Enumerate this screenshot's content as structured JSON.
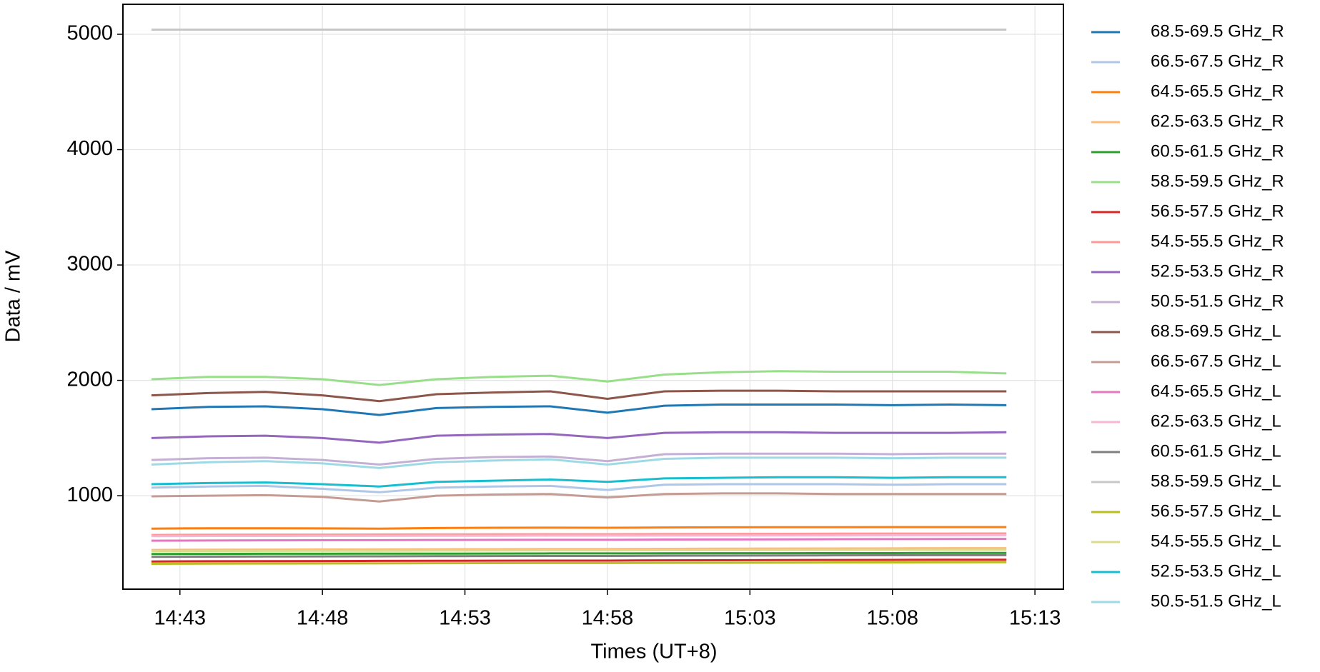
{
  "chart_data": {
    "type": "line",
    "xlabel": "Times (UT+8)",
    "ylabel": "Data / mV",
    "x": [
      "14:42",
      "14:44",
      "14:46",
      "14:48",
      "14:50",
      "14:52",
      "14:54",
      "14:56",
      "14:58",
      "15:00",
      "15:02",
      "15:04",
      "15:06",
      "15:08",
      "15:10",
      "15:12"
    ],
    "xlim": [
      "14:41",
      "15:14"
    ],
    "xticks": [
      "14:43",
      "14:48",
      "14:53",
      "14:58",
      "15:03",
      "15:08",
      "15:13"
    ],
    "ylim": [
      190,
      5260
    ],
    "yticks": [
      1000,
      2000,
      3000,
      4000,
      5000
    ],
    "grid": true,
    "legend": "right",
    "series": [
      {
        "name": "68.5-69.5 GHz_R",
        "color": "#1f77b4",
        "values": [
          1750,
          1770,
          1775,
          1750,
          1700,
          1760,
          1770,
          1775,
          1720,
          1780,
          1790,
          1790,
          1790,
          1785,
          1790,
          1785
        ]
      },
      {
        "name": "66.5-67.5 GHz_R",
        "color": "#aec7e8",
        "values": [
          1070,
          1080,
          1085,
          1060,
          1030,
          1070,
          1080,
          1085,
          1050,
          1095,
          1100,
          1100,
          1100,
          1095,
          1100,
          1100
        ]
      },
      {
        "name": "64.5-65.5 GHz_R",
        "color": "#ff7f0e",
        "values": [
          715,
          718,
          718,
          717,
          715,
          720,
          722,
          723,
          722,
          725,
          726,
          727,
          727,
          728,
          728,
          728
        ]
      },
      {
        "name": "62.5-63.5 GHz_R",
        "color": "#ffbb78",
        "values": [
          530,
          532,
          533,
          534,
          535,
          536,
          537,
          538,
          538,
          540,
          541,
          542,
          543,
          544,
          545,
          545
        ]
      },
      {
        "name": "60.5-61.5 GHz_R",
        "color": "#2ca02c",
        "values": [
          495,
          496,
          497,
          497,
          498,
          498,
          499,
          500,
          500,
          501,
          502,
          502,
          503,
          503,
          504,
          504
        ]
      },
      {
        "name": "58.5-59.5 GHz_R",
        "color": "#98df8a",
        "values": [
          2010,
          2030,
          2030,
          2010,
          1960,
          2010,
          2030,
          2040,
          1990,
          2050,
          2070,
          2080,
          2075,
          2075,
          2075,
          2060
        ]
      },
      {
        "name": "56.5-57.5 GHz_R",
        "color": "#d62728",
        "values": [
          430,
          432,
          433,
          434,
          435,
          436,
          437,
          438,
          438,
          440,
          441,
          442,
          443,
          444,
          445,
          445
        ]
      },
      {
        "name": "54.5-55.5 GHz_R",
        "color": "#ff9896",
        "values": [
          660,
          662,
          663,
          663,
          664,
          665,
          666,
          667,
          667,
          668,
          669,
          670,
          671,
          672,
          672,
          673
        ]
      },
      {
        "name": "52.5-53.5 GHz_R",
        "color": "#9467bd",
        "values": [
          1500,
          1515,
          1520,
          1500,
          1460,
          1520,
          1530,
          1535,
          1500,
          1545,
          1550,
          1550,
          1545,
          1545,
          1545,
          1550
        ]
      },
      {
        "name": "50.5-51.5 GHz_R",
        "color": "#c5b0d5",
        "values": [
          1310,
          1325,
          1330,
          1310,
          1270,
          1320,
          1335,
          1340,
          1300,
          1360,
          1365,
          1365,
          1365,
          1360,
          1365,
          1365
        ]
      },
      {
        "name": "68.5-69.5 GHz_L",
        "color": "#8c564b",
        "values": [
          1870,
          1890,
          1900,
          1870,
          1820,
          1880,
          1895,
          1905,
          1840,
          1905,
          1910,
          1910,
          1905,
          1905,
          1905,
          1905
        ]
      },
      {
        "name": "66.5-67.5 GHz_L",
        "color": "#c49c94",
        "values": [
          995,
          1000,
          1005,
          990,
          950,
          1000,
          1010,
          1015,
          985,
          1015,
          1020,
          1020,
          1015,
          1015,
          1015,
          1015
        ]
      },
      {
        "name": "64.5-65.5 GHz_L",
        "color": "#e377c2",
        "values": [
          610,
          612,
          613,
          614,
          615,
          616,
          617,
          618,
          618,
          620,
          621,
          622,
          623,
          624,
          625,
          626
        ]
      },
      {
        "name": "62.5-63.5 GHz_L",
        "color": "#f7b6d2",
        "values": [
          650,
          651,
          651,
          652,
          652,
          653,
          653,
          654,
          654,
          655,
          655,
          656,
          656,
          657,
          657,
          658
        ]
      },
      {
        "name": "60.5-61.5 GHz_L",
        "color": "#7f7f7f",
        "values": [
          470,
          472,
          473,
          474,
          475,
          476,
          477,
          478,
          478,
          480,
          481,
          482,
          483,
          484,
          485,
          485
        ]
      },
      {
        "name": "58.5-59.5 GHz_L",
        "color": "#c7c7c7",
        "values": [
          5040,
          5040,
          5040,
          5040,
          5040,
          5040,
          5040,
          5040,
          5040,
          5040,
          5040,
          5040,
          5040,
          5040,
          5040,
          5040
        ]
      },
      {
        "name": "56.5-57.5 GHz_L",
        "color": "#bcbd22",
        "values": [
          410,
          411,
          412,
          413,
          414,
          415,
          416,
          417,
          417,
          418,
          419,
          420,
          421,
          422,
          423,
          424
        ]
      },
      {
        "name": "54.5-55.5 GHz_L",
        "color": "#dbdb8d",
        "values": [
          520,
          521,
          522,
          523,
          523,
          524,
          525,
          526,
          526,
          527,
          528,
          529,
          530,
          531,
          531,
          532
        ]
      },
      {
        "name": "52.5-53.5 GHz_L",
        "color": "#17becf",
        "values": [
          1100,
          1110,
          1115,
          1100,
          1080,
          1120,
          1130,
          1140,
          1120,
          1150,
          1155,
          1160,
          1160,
          1155,
          1160,
          1160
        ]
      },
      {
        "name": "50.5-51.5 GHz_L",
        "color": "#9edae5",
        "values": [
          1270,
          1290,
          1300,
          1280,
          1240,
          1290,
          1305,
          1315,
          1270,
          1320,
          1330,
          1330,
          1330,
          1325,
          1330,
          1330
        ]
      }
    ]
  }
}
